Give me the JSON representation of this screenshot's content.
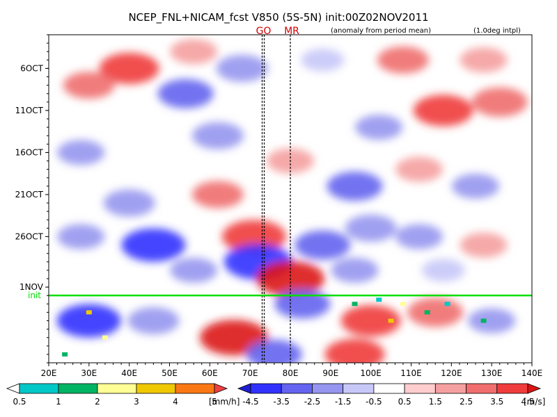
{
  "chart_data": {
    "type": "heatmap",
    "title": "NCEP_FNL+NICAM_fcst V850 (5S-5N) init:00Z02NOV2011",
    "note_left": "(anomaly from period mean)",
    "note_right": "(1.0deg intpl)",
    "x_axis": {
      "ticks": [
        "20E",
        "30E",
        "40E",
        "50E",
        "60E",
        "70E",
        "80E",
        "90E",
        "100E",
        "110E",
        "120E",
        "130E",
        "140E"
      ],
      "range": [
        20,
        140
      ]
    },
    "y_axis": {
      "ticks": [
        {
          "label": "6OCT",
          "day": 6
        },
        {
          "label": "11OCT",
          "day": 11
        },
        {
          "label": "16OCT",
          "day": 16
        },
        {
          "label": "21OCT",
          "day": 21
        },
        {
          "label": "26OCT",
          "day": 26
        },
        {
          "label": "1NOV",
          "day": 32
        }
      ],
      "range_days": [
        2,
        41
      ]
    },
    "init_line": {
      "label": "init",
      "day": 33,
      "color": "#00dd00"
    },
    "markers": [
      {
        "label": "GO",
        "lon": 73
      },
      {
        "label": "MR",
        "lon": 80
      }
    ],
    "anomaly_field": [
      {
        "lon": 40,
        "day": 6,
        "value": 3.5
      },
      {
        "lon": 30,
        "day": 8,
        "value": 2.5
      },
      {
        "lon": 56,
        "day": 4,
        "value": 2.0
      },
      {
        "lon": 68,
        "day": 6,
        "value": -2.5
      },
      {
        "lon": 88,
        "day": 5,
        "value": -1.5
      },
      {
        "lon": 108,
        "day": 5,
        "value": 2.5
      },
      {
        "lon": 128,
        "day": 5,
        "value": 2.0
      },
      {
        "lon": 54,
        "day": 9,
        "value": -3.0
      },
      {
        "lon": 118,
        "day": 11,
        "value": 3.5
      },
      {
        "lon": 132,
        "day": 10,
        "value": 3.0
      },
      {
        "lon": 62,
        "day": 14,
        "value": -2.5
      },
      {
        "lon": 102,
        "day": 13,
        "value": -2.0
      },
      {
        "lon": 28,
        "day": 16,
        "value": -2.0
      },
      {
        "lon": 80,
        "day": 17,
        "value": 2.0
      },
      {
        "lon": 96,
        "day": 20,
        "value": -3.0
      },
      {
        "lon": 112,
        "day": 18,
        "value": 2.0
      },
      {
        "lon": 62,
        "day": 21,
        "value": 2.5
      },
      {
        "lon": 126,
        "day": 20,
        "value": -2.0
      },
      {
        "lon": 40,
        "day": 22,
        "value": -2.5
      },
      {
        "lon": 100,
        "day": 25,
        "value": -2.5
      },
      {
        "lon": 46,
        "day": 27,
        "value": -4.0
      },
      {
        "lon": 28,
        "day": 26,
        "value": -2.0
      },
      {
        "lon": 71,
        "day": 26,
        "value": 4.0
      },
      {
        "lon": 88,
        "day": 27,
        "value": -3.0
      },
      {
        "lon": 112,
        "day": 26,
        "value": -2.0
      },
      {
        "lon": 128,
        "day": 27,
        "value": 2.0
      },
      {
        "lon": 72,
        "day": 29,
        "value": -4.5
      },
      {
        "lon": 80,
        "day": 31,
        "value": 4.5
      },
      {
        "lon": 56,
        "day": 30,
        "value": -2.0
      },
      {
        "lon": 96,
        "day": 30,
        "value": -2.0
      },
      {
        "lon": 118,
        "day": 30,
        "value": -1.5
      },
      {
        "lon": 30,
        "day": 36,
        "value": -4.0
      },
      {
        "lon": 46,
        "day": 36,
        "value": -2.5
      },
      {
        "lon": 66,
        "day": 38,
        "value": 4.5
      },
      {
        "lon": 100,
        "day": 36,
        "value": 3.5
      },
      {
        "lon": 116,
        "day": 35,
        "value": 3.0
      },
      {
        "lon": 83,
        "day": 34,
        "value": -3.0
      },
      {
        "lon": 130,
        "day": 36,
        "value": -2.0
      },
      {
        "lon": 96,
        "day": 40,
        "value": 3.5
      },
      {
        "lon": 76,
        "day": 40,
        "value": -3.0
      }
    ],
    "precip_cells": [
      {
        "lon": 30,
        "day": 35,
        "value": 4
      },
      {
        "lon": 34,
        "day": 38,
        "value": 3
      },
      {
        "lon": 24,
        "day": 40,
        "value": 2
      },
      {
        "lon": 96,
        "day": 34,
        "value": 2
      },
      {
        "lon": 102,
        "day": 33.5,
        "value": 1
      },
      {
        "lon": 108,
        "day": 34,
        "value": 3
      },
      {
        "lon": 114,
        "day": 35,
        "value": 2
      },
      {
        "lon": 119,
        "day": 34,
        "value": 1
      },
      {
        "lon": 105,
        "day": 36,
        "value": 4
      },
      {
        "lon": 128,
        "day": 36,
        "value": 2
      }
    ],
    "rain_colorbar": {
      "colors": [
        "#ffffff",
        "#00c8c8",
        "#00b464",
        "#ffff96",
        "#f0c800",
        "#fa7814",
        "#f04040"
      ],
      "labels": [
        "0.5",
        "1",
        "2",
        "3",
        "4",
        "5"
      ],
      "unit": "[mm/h]"
    },
    "wind_colorbar": {
      "colors": [
        "#1e1ed2",
        "#3232ff",
        "#6464f0",
        "#9696f0",
        "#c8c8f8",
        "#ffffff",
        "#ffcdcd",
        "#f5a0a0",
        "#f06e6e",
        "#f03c3c",
        "#dc1414"
      ],
      "labels": [
        "-4.5",
        "-3.5",
        "-2.5",
        "-1.5",
        "-0.5",
        "0.5",
        "1.5",
        "2.5",
        "3.5",
        "4.5"
      ],
      "unit": "[m/s]"
    }
  }
}
